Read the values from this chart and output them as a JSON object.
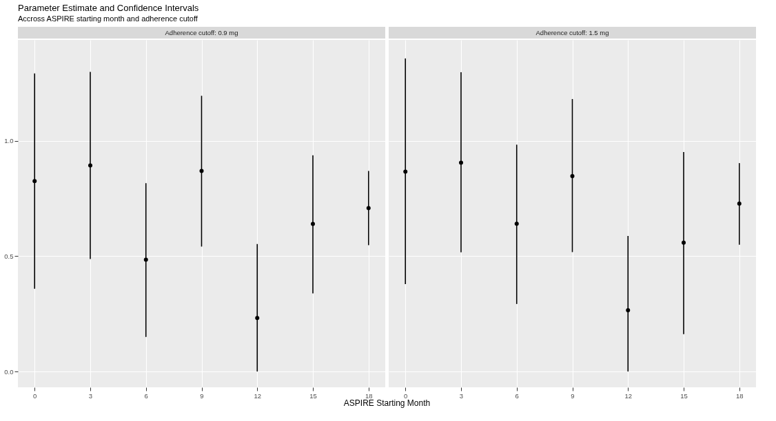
{
  "chart_data": [
    {
      "type": "scatter",
      "title": "Parameter Estimate and Confidence Intervals",
      "subtitle": "Accross ASPIRE starting month and adherence cutoff",
      "xlabel": "ASPIRE Starting Month",
      "annotations": [
        "Adherence cutoff: 0.9 mg"
      ],
      "x": [
        0,
        3,
        6,
        9,
        12,
        15,
        18
      ],
      "xlim": [
        -0.9,
        18.9
      ],
      "xticks": [
        0,
        3,
        6,
        9,
        12,
        15,
        18
      ],
      "ylim": [
        -0.0685,
        1.4385
      ],
      "yticks": [
        {
          "value": 0,
          "label": "0.0"
        },
        0.5,
        {
          "value": 1,
          "label": "1.0"
        }
      ],
      "grid": true,
      "marker": "circle",
      "series": [
        {
          "color": "#000000",
          "values": [
            0.826,
            0.894,
            0.485,
            0.87,
            0.232,
            0.64,
            0.709
          ],
          "errors": [
            [
              0.359,
              1.293
            ],
            [
              0.488,
              1.3
            ],
            [
              0.15,
              0.817
            ],
            [
              0.542,
              1.196
            ],
            [
              0,
              0.553
            ],
            [
              0.339,
              0.938
            ],
            [
              0.548,
              0.87
            ]
          ]
        }
      ]
    },
    {
      "type": "scatter",
      "annotations": [
        "Adherence cutoff: 1.5 mg"
      ],
      "x": [
        0,
        3,
        6,
        9,
        12,
        15,
        18
      ],
      "xlim": [
        -0.9,
        18.9
      ],
      "xticks": [
        0,
        3,
        6,
        9,
        12,
        15,
        18
      ],
      "ylim": [
        -0.0685,
        1.4385
      ],
      "yticks": [
        0,
        0.5,
        1
      ],
      "grid": true,
      "marker": "circle",
      "tick_labels": "x",
      "series": [
        {
          "color": "#000000",
          "values": [
            0.867,
            0.906,
            0.641,
            0.848,
            0.266,
            0.559,
            0.728
          ],
          "errors": [
            [
              0.379,
              1.358
            ],
            [
              0.517,
              1.298
            ],
            [
              0.293,
              0.984
            ],
            [
              0.518,
              1.182
            ],
            [
              0,
              0.588
            ],
            [
              0.162,
              0.952
            ],
            [
              0.55,
              0.904
            ]
          ]
        }
      ]
    }
  ]
}
